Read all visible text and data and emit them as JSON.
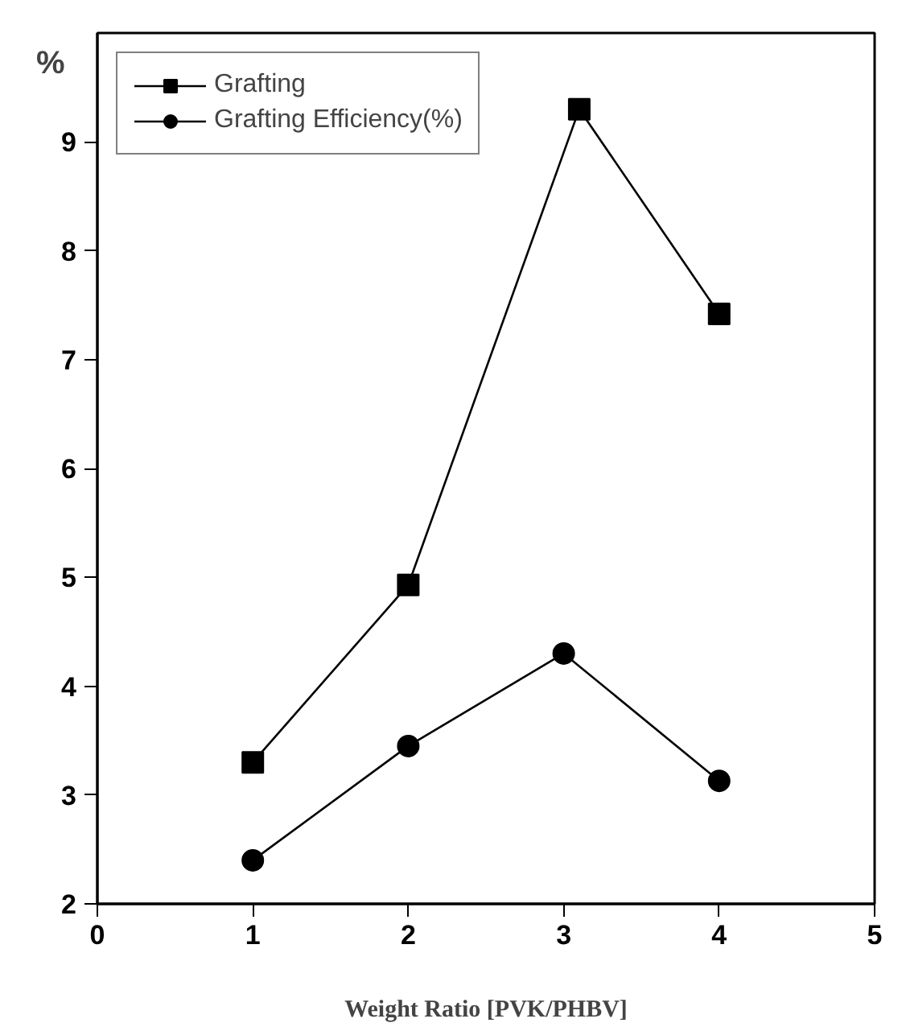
{
  "chart_data": {
    "type": "line",
    "xlabel": "Weight Ratio [PVK/PHBV]",
    "ylabel": "%",
    "xlim": [
      0,
      5
    ],
    "ylim": [
      2,
      10
    ],
    "xticks": [
      0,
      1,
      2,
      3,
      4,
      5
    ],
    "yticks": [
      2,
      3,
      4,
      5,
      6,
      7,
      8,
      9
    ],
    "grid": false,
    "legend": "top left",
    "line_style": "solid",
    "series": [
      {
        "name": "Grafting",
        "color": "#000000",
        "marker": "square",
        "x": [
          1,
          2,
          3.1,
          4
        ],
        "values": [
          3.3,
          4.93,
          9.3,
          7.42
        ]
      },
      {
        "name": "Grafting Efficiency(%)",
        "color": "#000000",
        "marker": "circle",
        "x": [
          1,
          2,
          3,
          4
        ],
        "values": [
          2.4,
          3.45,
          4.3,
          3.13
        ]
      }
    ]
  }
}
